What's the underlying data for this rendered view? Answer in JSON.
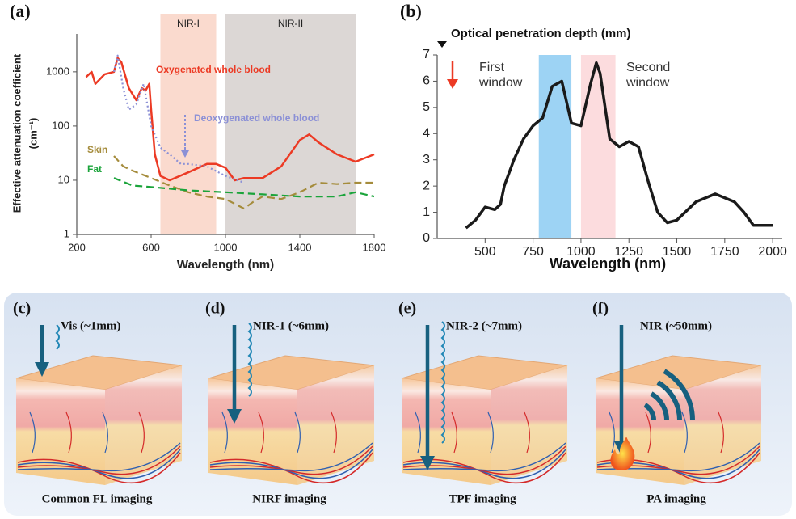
{
  "chart_data": [
    {
      "type": "line",
      "panel_label": "(a)",
      "yscale": "log",
      "y_label": [
        "Effective attenuation coefficient",
        "(cm⁻¹)"
      ],
      "x_label": "Wavelength (nm)",
      "xlim": [
        200,
        1800
      ],
      "xticks": [
        200,
        600,
        1000,
        1400,
        1800
      ],
      "ylim": [
        1,
        5000
      ],
      "yticks": [
        1,
        10,
        100,
        1000
      ],
      "bands": [
        {
          "label": "NIR-I",
          "range": [
            650,
            950
          ],
          "color": "#f9d4c6"
        },
        {
          "label": "NIR-II",
          "range": [
            1000,
            1700
          ],
          "color": "#d6d0ce"
        }
      ],
      "series": [
        {
          "name": "Oxygenated whole blood",
          "color": "#ec3a24",
          "style": "solid",
          "x": [
            250,
            280,
            300,
            350,
            400,
            420,
            440,
            480,
            520,
            550,
            570,
            590,
            600,
            620,
            650,
            700,
            800,
            900,
            950,
            1000,
            1050,
            1100,
            1200,
            1300,
            1400,
            1450,
            1500,
            1600,
            1700,
            1800
          ],
          "values": [
            800,
            1000,
            600,
            900,
            1000,
            1800,
            1500,
            500,
            300,
            500,
            450,
            600,
            200,
            30,
            12,
            10,
            14,
            20,
            20,
            17,
            10,
            11,
            11,
            18,
            55,
            70,
            50,
            30,
            22,
            30
          ]
        },
        {
          "name": "Deoxygenated whole blood",
          "color": "#8b90d6",
          "style": "dotted",
          "x": [
            400,
            420,
            450,
            480,
            520,
            560,
            600,
            650,
            700,
            760,
            800,
            900,
            1000,
            1100
          ],
          "values": [
            1000,
            2000,
            500,
            200,
            250,
            600,
            100,
            40,
            30,
            20,
            20,
            18,
            12,
            9
          ]
        },
        {
          "name": "Skin",
          "color": "#a58c3c",
          "style": "dashed",
          "x": [
            400,
            450,
            500,
            600,
            700,
            800,
            900,
            1000,
            1100,
            1150,
            1200,
            1300,
            1400,
            1500,
            1600,
            1700,
            1800
          ],
          "values": [
            28,
            18,
            15,
            11,
            8,
            6,
            5,
            4.5,
            3,
            4,
            5,
            4.5,
            6,
            9,
            8.5,
            9,
            9
          ]
        },
        {
          "name": "Fat",
          "color": "#1ba43b",
          "style": "dashed",
          "x": [
            400,
            500,
            600,
            800,
            1000,
            1200,
            1400,
            1600,
            1700,
            1750,
            1800
          ],
          "values": [
            11,
            8,
            7.5,
            6.5,
            6,
            5.5,
            5,
            5,
            6,
            5.5,
            5
          ]
        }
      ]
    },
    {
      "type": "line",
      "panel_label": "(b)",
      "title": "Optical penetration depth (mm)",
      "x_label": "Wavelength (nm)",
      "xlim": [
        250,
        2050
      ],
      "xticks": [
        500,
        750,
        1000,
        1250,
        1500,
        1750,
        2000
      ],
      "ylim": [
        0,
        7
      ],
      "yticks": [
        0,
        1,
        2,
        3,
        4,
        5,
        6,
        7
      ],
      "bands": [
        {
          "range": [
            780,
            950
          ],
          "color": "#8ccbf2"
        },
        {
          "range": [
            1000,
            1180
          ],
          "color": "#fbd6d8"
        }
      ],
      "annotations": [
        {
          "lines": [
            "First",
            "window"
          ]
        },
        {
          "lines": [
            "Second",
            "window"
          ]
        }
      ],
      "series": [
        {
          "color": "#1a1a1a",
          "style": "solid",
          "x": [
            400,
            450,
            500,
            550,
            580,
            600,
            650,
            700,
            750,
            800,
            850,
            900,
            950,
            1000,
            1050,
            1080,
            1100,
            1150,
            1200,
            1250,
            1300,
            1350,
            1400,
            1450,
            1500,
            1600,
            1700,
            1800,
            1850,
            1900,
            2000
          ],
          "values": [
            0.4,
            0.7,
            1.2,
            1.1,
            1.3,
            2,
            3,
            3.8,
            4.3,
            4.6,
            5.8,
            6,
            4.4,
            4.3,
            5.9,
            6.7,
            6.3,
            3.8,
            3.5,
            3.7,
            3.5,
            2.2,
            1,
            0.6,
            0.7,
            1.4,
            1.7,
            1.4,
            1.0,
            0.5,
            0.5
          ]
        }
      ]
    }
  ],
  "panels": [
    {
      "label": "(c)",
      "light": "Vis (~1mm)",
      "caption": "Common FL imaging"
    },
    {
      "label": "(d)",
      "light": "NIR-1 (~6mm)",
      "caption": "NIRF imaging"
    },
    {
      "label": "(e)",
      "light": "NIR-2 (~7mm)",
      "caption": "TPF imaging"
    },
    {
      "label": "(f)",
      "light": "NIR (~50mm)",
      "caption": "PA imaging"
    }
  ]
}
